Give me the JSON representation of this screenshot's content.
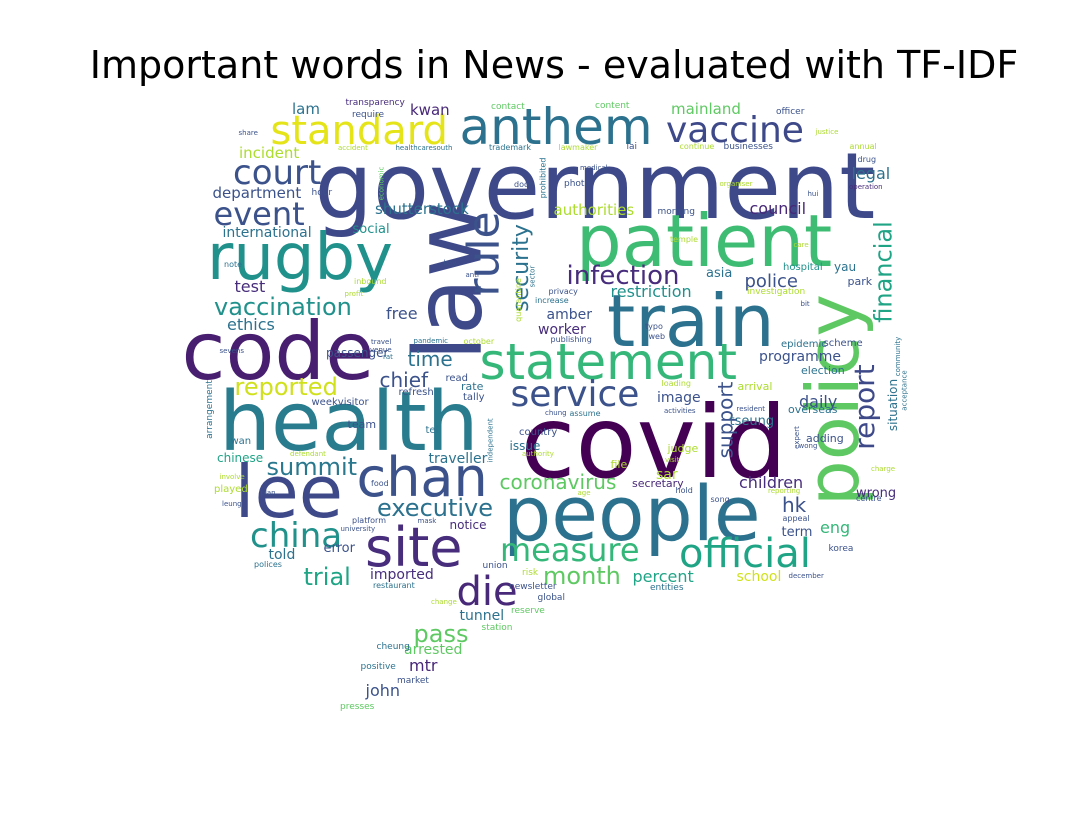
{
  "title": "Important words in News - evaluated with TF-IDF",
  "palette": [
    "#440154",
    "#472d7b",
    "#3b528b",
    "#2c728e",
    "#21918c",
    "#28ae80",
    "#5ec962",
    "#addc30",
    "#fde725"
  ],
  "words": [
    {
      "t": "government",
      "c": "#3e4989"
    },
    {
      "t": "covid",
      "c": "#440154"
    },
    {
      "t": "people",
      "c": "#2c728e"
    },
    {
      "t": "health",
      "c": "#287c8e"
    },
    {
      "t": "patient",
      "c": "#3fbc73"
    },
    {
      "t": "law",
      "c": "#3e4989"
    },
    {
      "t": "code",
      "c": "#481f70"
    },
    {
      "t": "train",
      "c": "#2c728e"
    },
    {
      "t": "rugby",
      "c": "#21918c"
    },
    {
      "t": "policy",
      "c": "#5ec962"
    },
    {
      "t": "lee",
      "c": "#3e4989"
    },
    {
      "t": "statement",
      "c": "#35b779"
    },
    {
      "t": "anthem",
      "c": "#2c728e"
    },
    {
      "t": "site",
      "c": "#472d7b"
    },
    {
      "t": "chan",
      "c": "#3b528b"
    },
    {
      "t": "standard",
      "c": "#e4e419"
    },
    {
      "t": "vaccine",
      "c": "#3e4989"
    },
    {
      "t": "official",
      "c": "#20a486"
    },
    {
      "t": "rule",
      "c": "#3b528b"
    },
    {
      "t": "service",
      "c": "#3b528b"
    },
    {
      "t": "court",
      "c": "#3b528b"
    },
    {
      "t": "die",
      "c": "#482878"
    },
    {
      "t": "measure",
      "c": "#35b779"
    },
    {
      "t": "event",
      "c": "#3b528b"
    },
    {
      "t": "report",
      "c": "#3e4989"
    },
    {
      "t": "financial",
      "c": "#20a486"
    },
    {
      "t": "china",
      "c": "#21918c"
    },
    {
      "t": "infection",
      "c": "#472d7b"
    },
    {
      "t": "security",
      "c": "#2c728e"
    },
    {
      "t": "vaccination",
      "c": "#21918c"
    },
    {
      "t": "reported",
      "c": "#d0e11c"
    },
    {
      "t": "summit",
      "c": "#2a788e"
    },
    {
      "t": "trial",
      "c": "#20a486"
    },
    {
      "t": "month",
      "c": "#5ec962"
    },
    {
      "t": "coronavirus",
      "c": "#5ec962"
    },
    {
      "t": "executive",
      "c": "#2c728e"
    },
    {
      "t": "time",
      "c": "#2c728e"
    },
    {
      "t": "chief",
      "c": "#3b528b"
    },
    {
      "t": "pass",
      "c": "#5ec962"
    },
    {
      "t": "support",
      "c": "#3b528b"
    },
    {
      "t": "daily",
      "c": "#3b528b"
    },
    {
      "t": "children",
      "c": "#472d7b"
    },
    {
      "t": "percent",
      "c": "#20a486"
    },
    {
      "t": "police",
      "c": "#3b528b"
    },
    {
      "t": "restriction",
      "c": "#21918c"
    },
    {
      "t": "legal",
      "c": "#2c728e"
    },
    {
      "t": "council",
      "c": "#482878"
    },
    {
      "t": "authorities",
      "c": "#addc30"
    },
    {
      "t": "shutterstock",
      "c": "#2c728e"
    },
    {
      "t": "department",
      "c": "#3b528b"
    },
    {
      "t": "incident",
      "c": "#addc30"
    },
    {
      "t": "international",
      "c": "#2c728e"
    },
    {
      "t": "social",
      "c": "#21918c"
    },
    {
      "t": "test",
      "c": "#472d7b"
    },
    {
      "t": "ethics",
      "c": "#2c728e"
    },
    {
      "t": "free",
      "c": "#3b528b"
    },
    {
      "t": "amber",
      "c": "#3b528b"
    },
    {
      "t": "worker",
      "c": "#472d7b"
    },
    {
      "t": "programme",
      "c": "#3b528b"
    },
    {
      "t": "situation",
      "c": "#2c728e"
    },
    {
      "t": "election",
      "c": "#2c728e"
    },
    {
      "t": "image",
      "c": "#3b528b"
    },
    {
      "t": "tseung",
      "c": "#2c728e"
    },
    {
      "t": "hk",
      "c": "#3b528b"
    },
    {
      "t": "eng",
      "c": "#35b779"
    },
    {
      "t": "wrong",
      "c": "#472d7b"
    },
    {
      "t": "term",
      "c": "#3b528b"
    },
    {
      "t": "school",
      "c": "#d0e11c"
    },
    {
      "t": "sar",
      "c": "#addc30"
    },
    {
      "t": "secretary",
      "c": "#482878"
    },
    {
      "t": "traveller",
      "c": "#2c728e"
    },
    {
      "t": "told",
      "c": "#2c728e"
    },
    {
      "t": "imported",
      "c": "#472d7b"
    },
    {
      "t": "error",
      "c": "#3b528b"
    },
    {
      "t": "notice",
      "c": "#472d7b"
    },
    {
      "t": "tunnel",
      "c": "#2c728e"
    },
    {
      "t": "arrested",
      "c": "#5ec962"
    },
    {
      "t": "mtr",
      "c": "#482878"
    },
    {
      "t": "john",
      "c": "#3b528b"
    },
    {
      "t": "lam",
      "c": "#2c728e"
    },
    {
      "t": "kwan",
      "c": "#482878"
    },
    {
      "t": "mainland",
      "c": "#5ec962"
    },
    {
      "t": "asia",
      "c": "#2c728e"
    },
    {
      "t": "yau",
      "c": "#2c728e"
    },
    {
      "t": "passenger",
      "c": "#3b528b"
    },
    {
      "t": "hospital",
      "c": "#21918c"
    },
    {
      "t": "park",
      "c": "#3b528b"
    },
    {
      "t": "scheme",
      "c": "#3b528b"
    },
    {
      "t": "epidemic",
      "c": "#2c728e"
    },
    {
      "t": "arrival",
      "c": "#addc30"
    },
    {
      "t": "adding",
      "c": "#3b528b"
    },
    {
      "t": "overseas",
      "c": "#2c728e"
    },
    {
      "t": "judge",
      "c": "#addc30"
    },
    {
      "t": "issue",
      "c": "#2c728e"
    },
    {
      "t": "country",
      "c": "#3b528b"
    },
    {
      "t": "file",
      "c": "#addc30"
    },
    {
      "t": "chinese",
      "c": "#20a486"
    },
    {
      "t": "played",
      "c": "#addc30"
    },
    {
      "t": "team",
      "c": "#3b528b"
    },
    {
      "t": "tei",
      "c": "#2c728e"
    },
    {
      "t": "read",
      "c": "#3b528b"
    },
    {
      "t": "rate",
      "c": "#2c728e"
    },
    {
      "t": "tally",
      "c": "#3b528b"
    },
    {
      "t": "refresh",
      "c": "#3b528b"
    },
    {
      "t": "weekvisitor",
      "c": "#3b528b"
    },
    {
      "t": "wan",
      "c": "#2c728e"
    },
    {
      "t": "arrangement",
      "c": "#2c728e"
    },
    {
      "t": "korea",
      "c": "#3b528b"
    },
    {
      "t": "union",
      "c": "#3b528b"
    },
    {
      "t": "risk",
      "c": "#addc30"
    },
    {
      "t": "newsletter",
      "c": "#3b528b"
    },
    {
      "t": "global",
      "c": "#3b528b"
    },
    {
      "t": "entities",
      "c": "#2c728e"
    },
    {
      "t": "reserve",
      "c": "#5ec962"
    },
    {
      "t": "station",
      "c": "#5ec962"
    },
    {
      "t": "cheung",
      "c": "#2c728e"
    },
    {
      "t": "positive",
      "c": "#2c728e"
    },
    {
      "t": "market",
      "c": "#3b528b"
    },
    {
      "t": "presses",
      "c": "#5ec962"
    },
    {
      "t": "restaurant",
      "c": "#2c728e"
    },
    {
      "t": "polices",
      "c": "#2c728e"
    },
    {
      "t": "university",
      "c": "#3b528b"
    },
    {
      "t": "platform",
      "c": "#3b528b"
    },
    {
      "t": "mask",
      "c": "#3b528b"
    },
    {
      "t": "change",
      "c": "#addc30"
    },
    {
      "t": "leung",
      "c": "#3b528b"
    },
    {
      "t": "plan",
      "c": "#3b528b"
    },
    {
      "t": "involve",
      "c": "#addc30"
    },
    {
      "t": "defendant",
      "c": "#addc30"
    },
    {
      "t": "food",
      "c": "#3b528b"
    },
    {
      "t": "age",
      "c": "#addc30"
    },
    {
      "t": "hold",
      "c": "#3b528b"
    },
    {
      "t": "song",
      "c": "#3b528b"
    },
    {
      "t": "reporting",
      "c": "#addc30"
    },
    {
      "t": "appeal",
      "c": "#3b528b"
    },
    {
      "t": "december",
      "c": "#3b528b"
    },
    {
      "t": "centre",
      "c": "#3b528b"
    },
    {
      "t": "charge",
      "c": "#addc30"
    },
    {
      "t": "wong",
      "c": "#3b528b"
    },
    {
      "t": "expert",
      "c": "#3b528b"
    },
    {
      "t": "authority",
      "c": "#addc30"
    },
    {
      "t": "visit",
      "c": "#addc30"
    },
    {
      "t": "independent",
      "c": "#2c728e"
    },
    {
      "t": "chung",
      "c": "#3b528b"
    },
    {
      "t": "activities",
      "c": "#3b528b"
    },
    {
      "t": "resident",
      "c": "#3b528b"
    },
    {
      "t": "loading",
      "c": "#addc30"
    },
    {
      "t": "typo",
      "c": "#3b528b"
    },
    {
      "t": "web",
      "c": "#3b528b"
    },
    {
      "t": "publishing",
      "c": "#3b528b"
    },
    {
      "t": "increase",
      "c": "#2c728e"
    },
    {
      "t": "privacy",
      "c": "#3b528b"
    },
    {
      "t": "quarantine",
      "c": "#addc30"
    },
    {
      "t": "sector",
      "c": "#2c728e"
    },
    {
      "t": "anti",
      "c": "#3b528b"
    },
    {
      "t": "bay",
      "c": "#3b528b"
    },
    {
      "t": "inbound",
      "c": "#addc30"
    },
    {
      "t": "profit",
      "c": "#addc30"
    },
    {
      "t": "note",
      "c": "#2c728e"
    },
    {
      "t": "sevens",
      "c": "#3b528b"
    },
    {
      "t": "travel",
      "c": "#3b528b"
    },
    {
      "t": "venue",
      "c": "#3b528b"
    },
    {
      "t": "rat",
      "c": "#2c728e"
    },
    {
      "t": "pandemic",
      "c": "#2c728e"
    },
    {
      "t": "october",
      "c": "#addc30"
    },
    {
      "t": "temple",
      "c": "#addc30"
    },
    {
      "t": "care",
      "c": "#addc30"
    },
    {
      "t": "bit",
      "c": "#3b528b"
    },
    {
      "t": "investigation",
      "c": "#addc30"
    },
    {
      "t": "community",
      "c": "#2c728e"
    },
    {
      "t": "acceptance",
      "c": "#2c728e"
    },
    {
      "t": "hui",
      "c": "#3b528b"
    },
    {
      "t": "operation",
      "c": "#472d7b"
    },
    {
      "t": "drug",
      "c": "#3b528b"
    },
    {
      "t": "annual",
      "c": "#addc30"
    },
    {
      "t": "justice",
      "c": "#addc30"
    },
    {
      "t": "officer",
      "c": "#3b528b"
    },
    {
      "t": "content",
      "c": "#5ec962"
    },
    {
      "t": "contact",
      "c": "#5ec962"
    },
    {
      "t": "transparency",
      "c": "#472d7b"
    },
    {
      "t": "require",
      "c": "#3b528b"
    },
    {
      "t": "share",
      "c": "#3b528b"
    },
    {
      "t": "accident",
      "c": "#addc30"
    },
    {
      "t": "healthcaresouth",
      "c": "#2c728e"
    },
    {
      "t": "trademark",
      "c": "#2c728e"
    },
    {
      "t": "lawmaker",
      "c": "#addc30"
    },
    {
      "t": "lai",
      "c": "#3b528b"
    },
    {
      "t": "continue",
      "c": "#addc30"
    },
    {
      "t": "businesses",
      "c": "#3b528b"
    },
    {
      "t": "economic",
      "c": "#5ec962"
    },
    {
      "t": "hour",
      "c": "#3b528b"
    },
    {
      "t": "door",
      "c": "#3b528b"
    },
    {
      "t": "prohibited",
      "c": "#2c728e"
    },
    {
      "t": "photo",
      "c": "#3b528b"
    },
    {
      "t": "medical",
      "c": "#3b528b"
    },
    {
      "t": "morning",
      "c": "#3b528b"
    },
    {
      "t": "organiser",
      "c": "#addc30"
    },
    {
      "t": "assume",
      "c": "#2c728e"
    }
  ]
}
